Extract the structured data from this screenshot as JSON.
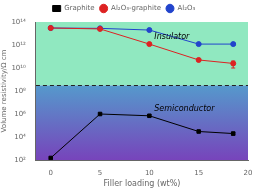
{
  "chart_data": {
    "type": "line",
    "xlabel": "Filler loading (wt%)",
    "ylabel": "Volume resistivity/Ω cm",
    "log": "y",
    "grid": false,
    "legend": "top",
    "xlim": [
      -1.5,
      20
    ],
    "xticks": [
      0,
      5,
      10,
      15,
      20
    ],
    "ylim": [
      100,
      100000000000000.0
    ],
    "yticks": [
      {
        "value": 100,
        "label": "10²"
      },
      {
        "value": 10000.0,
        "label": "10⁴"
      },
      {
        "value": 1000000.0,
        "label": "10⁶"
      },
      {
        "value": 100000000.0,
        "label": "10⁸"
      },
      {
        "value": 10000000000.0,
        "label": "10¹⁰"
      },
      {
        "value": 1000000000000.0,
        "label": "10¹²"
      },
      {
        "value": 100000000000000.0,
        "label": "10¹⁴"
      }
    ],
    "x": [
      0,
      5,
      10,
      15,
      18.5
    ],
    "series": [
      {
        "name": "Graphite",
        "color": "black",
        "marker": "square",
        "values": [
          150.0,
          1000000.0,
          700000.0,
          30000.0,
          20000.0
        ],
        "err_low": [
          0,
          0,
          0,
          0,
          5000.0
        ],
        "err_high": [
          0,
          0,
          0,
          0,
          5000.0
        ]
      },
      {
        "name": "Al₂O₃-graphite",
        "color": "#dd2222",
        "marker": "circle",
        "values": [
          30000000000000.0,
          25000000000000.0,
          1200000000000.0,
          50000000000.0,
          25000000000.0
        ],
        "err_low": [
          0,
          0,
          0,
          0,
          15000000000.0
        ],
        "err_high": [
          0,
          0,
          0,
          0,
          15000000000.0
        ]
      },
      {
        "name": "Al₂O₃",
        "color": "#2244cc",
        "marker": "circle",
        "values": [
          30000000000000.0,
          28000000000000.0,
          20000000000000.0,
          1200000000000.0,
          1200000000000.0
        ],
        "err_low": [
          0,
          0,
          0,
          0,
          300000000000.0
        ],
        "err_high": [
          0,
          0,
          0,
          0,
          300000000000.0
        ]
      }
    ],
    "regions": [
      {
        "from": 300000000.0,
        "to": 100000000000000.0,
        "color": "#90e8c0"
      },
      {
        "from": 100,
        "to": 300000000.0,
        "colors": [
          "#7744bb",
          "#5599cc"
        ]
      }
    ],
    "hlines": [
      {
        "y": 300000000.0,
        "color": "#222222",
        "line_style": "dashed"
      }
    ],
    "annotations": [
      {
        "text": "Insulator",
        "x": 10.5,
        "y": 5000000000000.0
      },
      {
        "text": "Semiconductor",
        "x": 10.5,
        "y": 3000000.0
      }
    ]
  }
}
